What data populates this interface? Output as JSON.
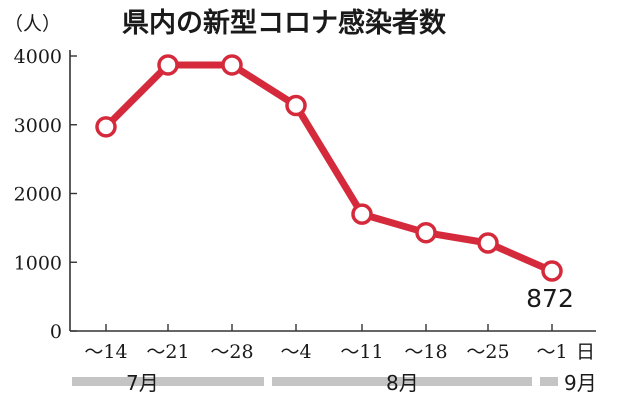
{
  "chart_data": {
    "type": "line",
    "title": "県内の新型コロナ感染者数",
    "unit_label": "（人）",
    "x": [
      "～14",
      "～21",
      "～28",
      "～4",
      "～11",
      "～18",
      "～25",
      "～1"
    ],
    "day_suffix": "日",
    "months": [
      "7月",
      "8月",
      "9月"
    ],
    "series": [
      {
        "values": [
          2970,
          3870,
          3870,
          3280,
          1700,
          1430,
          1280,
          872
        ]
      }
    ],
    "y_ticks": [
      "4000",
      "3000",
      "2000",
      "1000",
      "0"
    ],
    "ylim": [
      0,
      4000
    ],
    "grid": false,
    "data_labels": [
      {
        "index": 7,
        "text": "872"
      }
    ],
    "colors": {
      "line": "#d42a3b",
      "marker_fill": "#ffffff",
      "axis": "#333333",
      "month_band": "#c4c4c4"
    }
  }
}
